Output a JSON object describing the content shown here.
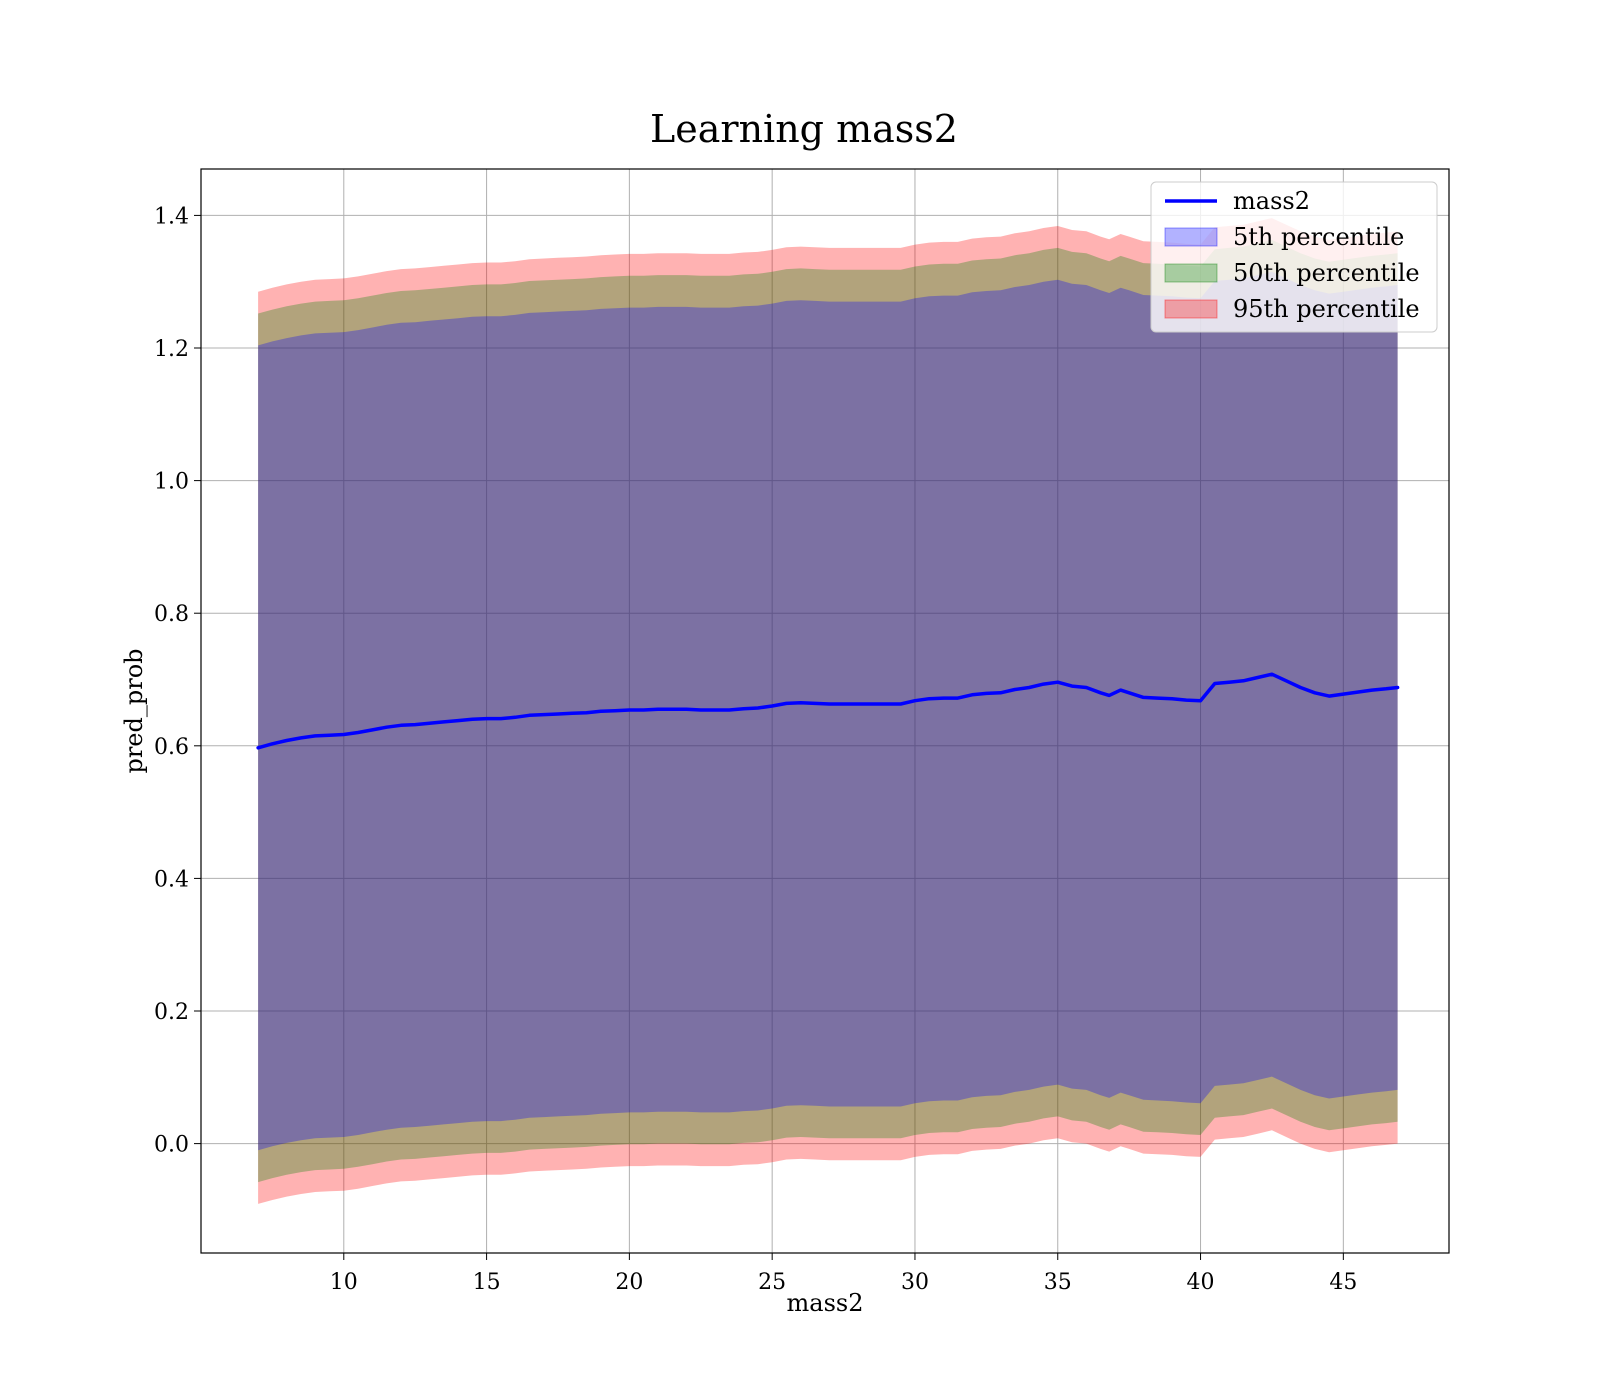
{
  "chart_data": {
    "type": "area",
    "title": "Learning mass2",
    "xlabel": "mass2",
    "ylabel": "pred_prob",
    "xlim": [
      5.0,
      48.7
    ],
    "ylim": [
      -0.165,
      1.47
    ],
    "x_ticks": [
      10,
      15,
      20,
      25,
      30,
      35,
      40,
      45
    ],
    "y_ticks": [
      0.0,
      0.2,
      0.4,
      0.6,
      0.8,
      1.0,
      1.2,
      1.4
    ],
    "x_tick_labels": [
      "10",
      "15",
      "20",
      "25",
      "30",
      "35",
      "40",
      "45"
    ],
    "y_tick_labels": [
      "0.0",
      "0.2",
      "0.4",
      "0.6",
      "0.8",
      "1.0",
      "1.2",
      "1.4"
    ],
    "grid": true,
    "legend": "top-right",
    "x": [
      7.0,
      7.5,
      8.0,
      8.5,
      9.0,
      9.5,
      10.0,
      10.5,
      11.0,
      11.5,
      12.0,
      12.5,
      13.0,
      13.5,
      14.0,
      14.5,
      15.0,
      15.5,
      16.0,
      16.5,
      17.0,
      17.5,
      18.0,
      18.5,
      19.0,
      19.5,
      20.0,
      20.5,
      21.0,
      21.5,
      22.0,
      22.5,
      23.0,
      23.5,
      24.0,
      24.5,
      25.0,
      25.5,
      26.0,
      26.5,
      27.0,
      27.5,
      28.0,
      28.5,
      29.0,
      29.5,
      30.0,
      30.5,
      31.0,
      31.5,
      32.0,
      32.5,
      33.0,
      33.5,
      34.0,
      34.5,
      35.0,
      35.5,
      36.0,
      36.5,
      36.8,
      37.2,
      37.5,
      38.0,
      38.5,
      39.0,
      39.5,
      40.0,
      40.5,
      41.0,
      41.5,
      42.0,
      42.5,
      43.0,
      43.5,
      44.0,
      44.5,
      45.0,
      45.5,
      46.0,
      46.5,
      46.9
    ],
    "series": [
      {
        "name": "mass2",
        "kind": "line",
        "color": "#0000ff",
        "values": [
          0.597,
          0.603,
          0.608,
          0.612,
          0.615,
          0.616,
          0.617,
          0.62,
          0.624,
          0.628,
          0.631,
          0.632,
          0.634,
          0.636,
          0.638,
          0.64,
          0.641,
          0.641,
          0.643,
          0.646,
          0.647,
          0.648,
          0.649,
          0.65,
          0.652,
          0.653,
          0.654,
          0.654,
          0.655,
          0.655,
          0.655,
          0.654,
          0.654,
          0.654,
          0.656,
          0.657,
          0.66,
          0.664,
          0.665,
          0.664,
          0.663,
          0.663,
          0.663,
          0.663,
          0.663,
          0.663,
          0.668,
          0.671,
          0.672,
          0.672,
          0.677,
          0.679,
          0.68,
          0.685,
          0.688,
          0.693,
          0.696,
          0.69,
          0.688,
          0.68,
          0.676,
          0.684,
          0.68,
          0.673,
          0.672,
          0.671,
          0.669,
          0.668,
          0.694,
          0.696,
          0.698,
          0.703,
          0.708,
          0.698,
          0.688,
          0.68,
          0.675,
          0.678,
          0.681,
          0.684,
          0.686,
          0.688
        ]
      }
    ],
    "bands": [
      {
        "name": "5th percentile",
        "fill": "#0000ff",
        "fill_opacity": 0.3,
        "half_width": 0.607
      },
      {
        "name": "50th percentile",
        "fill": "#008000",
        "fill_opacity": 0.3,
        "half_width": 0.655
      },
      {
        "name": "95th percentile",
        "fill": "#ff0000",
        "fill_opacity": 0.3,
        "half_width": 0.688
      }
    ]
  }
}
